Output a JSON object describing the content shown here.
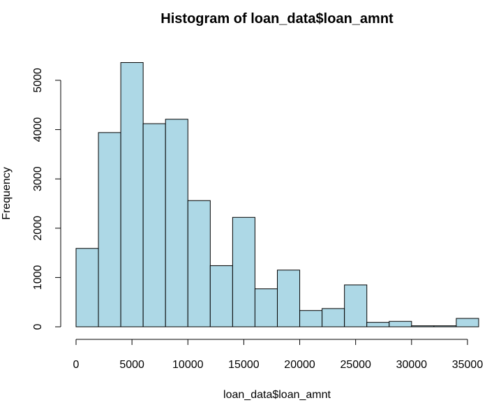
{
  "chart_data": {
    "type": "bar",
    "title": "Histogram of loan_data$loan_amnt",
    "xlabel": "loan_data$loan_amnt",
    "ylabel": "Frequency",
    "bin_edges": [
      0,
      2000,
      4000,
      6000,
      8000,
      10000,
      12000,
      14000,
      16000,
      18000,
      20000,
      22000,
      24000,
      26000,
      28000,
      30000,
      32000,
      34000,
      36000
    ],
    "values": [
      1590,
      3940,
      5360,
      4120,
      4210,
      2560,
      1240,
      2220,
      770,
      1150,
      330,
      370,
      850,
      90,
      110,
      20,
      20,
      170
    ],
    "xlim": [
      0,
      36000
    ],
    "ylim": [
      0,
      5000
    ],
    "x_ticks": [
      0,
      5000,
      10000,
      15000,
      20000,
      25000,
      30000,
      35000
    ],
    "y_ticks": [
      0,
      1000,
      2000,
      3000,
      4000,
      5000
    ],
    "x_tick_labels": [
      "0",
      "5000",
      "10000",
      "15000",
      "20000",
      "25000",
      "30000",
      "35000"
    ],
    "y_tick_labels": [
      "0",
      "1000",
      "2000",
      "3000",
      "4000",
      "5000"
    ],
    "bar_fill": "#add8e6",
    "bar_stroke": "#000000",
    "grid": false
  }
}
